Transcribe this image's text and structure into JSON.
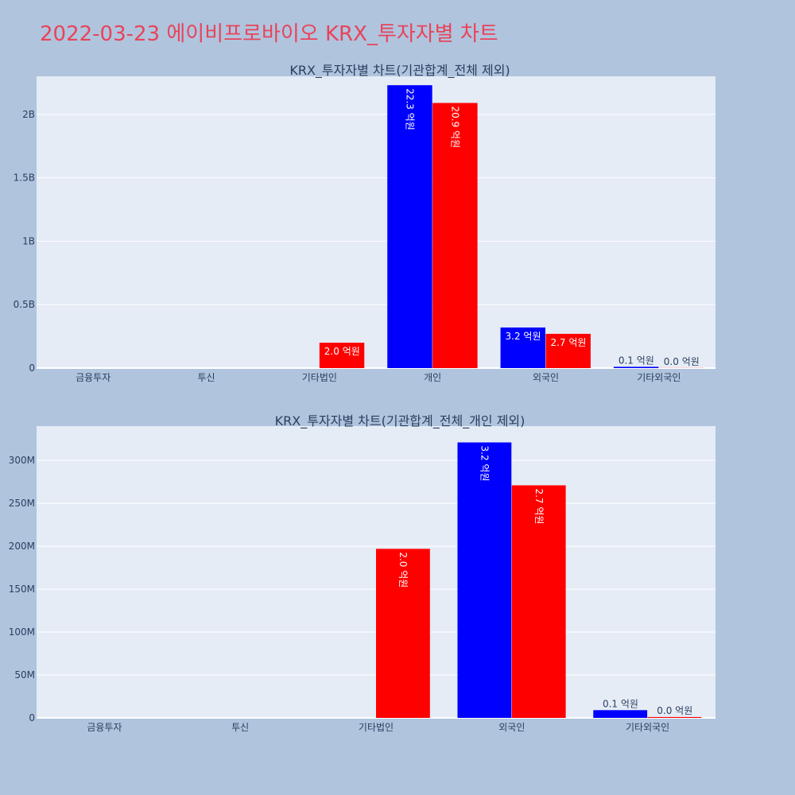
{
  "page": {
    "title": "2022-03-23 에이비프로바이오 KRX_투자자별 차트"
  },
  "colors": {
    "background": "#b0c4de",
    "plot_bg": "#e5ecf6",
    "title": "#e8445a",
    "series_a": "#0000ff",
    "series_b": "#ff0000"
  },
  "chart_data": [
    {
      "type": "bar",
      "title": "KRX_투자자별 차트(기관합계_전체 제외)",
      "categories": [
        "금융투자",
        "투신",
        "기타법인",
        "개인",
        "외국인",
        "기타외국인"
      ],
      "ylim": [
        0,
        2300000000
      ],
      "yticks": [
        0,
        500000000,
        1000000000,
        1500000000,
        2000000000
      ],
      "ytick_labels": [
        "0",
        "0.5B",
        "1B",
        "1.5B",
        "2B"
      ],
      "grid": true,
      "series": [
        {
          "color": "#0000ff",
          "values": [
            0,
            0,
            0,
            2230000000,
            320000000,
            10000000
          ],
          "labels": [
            "",
            "",
            "",
            "22.3 억원",
            "3.2 억원",
            "0.1 억원"
          ]
        },
        {
          "color": "#ff0000",
          "values": [
            0,
            0,
            200000000,
            2090000000,
            270000000,
            1000000
          ],
          "labels": [
            "",
            "",
            "2.0 억원",
            "20.9 억원",
            "2.7 억원",
            "0.0 억원"
          ]
        }
      ]
    },
    {
      "type": "bar",
      "title": "KRX_투자자별 차트(기관합계_전체_개인 제외)",
      "categories": [
        "금융투자",
        "투신",
        "기타법인",
        "외국인",
        "기타외국인"
      ],
      "ylim": [
        0,
        340000000
      ],
      "yticks": [
        0,
        50000000,
        100000000,
        150000000,
        200000000,
        250000000,
        300000000
      ],
      "ytick_labels": [
        "0",
        "50M",
        "100M",
        "150M",
        "200M",
        "250M",
        "300M"
      ],
      "grid": true,
      "series": [
        {
          "color": "#0000ff",
          "values": [
            0,
            0,
            0,
            321000000,
            9000000
          ],
          "labels": [
            "",
            "",
            "",
            "3.2 억원",
            "0.1 억원"
          ]
        },
        {
          "color": "#ff0000",
          "values": [
            0,
            0,
            197000000,
            271000000,
            1000000
          ],
          "labels": [
            "",
            "",
            "2.0 억원",
            "2.7 억원",
            "0.0 억원"
          ]
        }
      ]
    }
  ]
}
